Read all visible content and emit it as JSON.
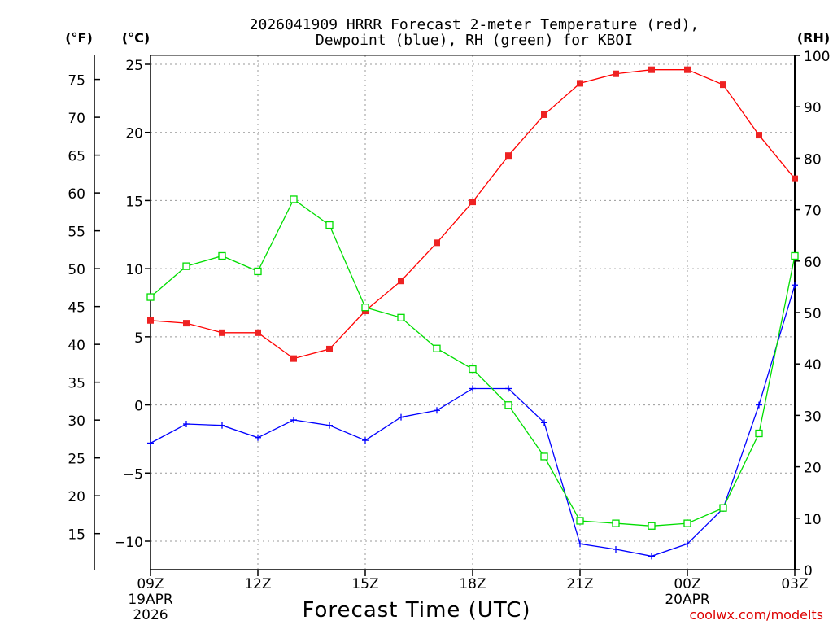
{
  "chart_data": {
    "type": "line",
    "title": "2026041909 HRRR Forecast 2-meter Temperature (red),",
    "subtitle": "Dewpoint (blue), RH (green) for KBOI",
    "xlabel": "Forecast Time (UTC)",
    "source_label": "coolwx.com/modelts",
    "left_outer_unit": "(°F)",
    "left_inner_unit": "(°C)",
    "right_unit": "(RH)",
    "x_ticks": [
      {
        "hour": 0,
        "label": "09Z",
        "line2": "19APR",
        "line3": "2026"
      },
      {
        "hour": 3,
        "label": "12Z",
        "line2": "",
        "line3": ""
      },
      {
        "hour": 6,
        "label": "15Z",
        "line2": "",
        "line3": ""
      },
      {
        "hour": 9,
        "label": "18Z",
        "line2": "",
        "line3": ""
      },
      {
        "hour": 12,
        "label": "21Z",
        "line2": "",
        "line3": ""
      },
      {
        "hour": 15,
        "label": "00Z",
        "line2": "20APR",
        "line3": ""
      },
      {
        "hour": 18,
        "label": "03Z",
        "line2": "",
        "line3": ""
      }
    ],
    "xlim": [
      0,
      18
    ],
    "celsius_ylim": [
      -12,
      25.5
    ],
    "celsius_ticks": [
      25,
      20,
      15,
      10,
      5,
      0,
      -5,
      -10
    ],
    "fahrenheit_ticks": [
      75,
      70,
      65,
      60,
      55,
      50,
      45,
      40,
      35,
      30,
      25,
      20,
      15
    ],
    "rh_ylim": [
      0,
      100
    ],
    "rh_ticks": [
      100,
      90,
      80,
      70,
      60,
      50,
      40,
      30,
      20,
      10,
      0
    ],
    "hours": [
      0,
      1,
      2,
      3,
      4,
      5,
      6,
      7,
      8,
      9,
      10,
      11,
      12,
      13,
      14,
      15,
      16,
      17,
      18
    ],
    "series": [
      {
        "name": "Temperature",
        "unit": "°C",
        "color": "#ff0000",
        "marker": "filled-square",
        "values": [
          6.2,
          6.0,
          5.3,
          5.3,
          3.4,
          4.1,
          6.9,
          9.1,
          11.9,
          14.9,
          18.3,
          21.3,
          23.6,
          24.3,
          24.6,
          24.6,
          23.5,
          19.8,
          16.6
        ]
      },
      {
        "name": "Dewpoint",
        "unit": "°C",
        "color": "#0000ff",
        "marker": "plus",
        "values": [
          -2.8,
          -1.4,
          -1.5,
          -2.4,
          -1.1,
          -1.5,
          -2.6,
          -0.9,
          -0.4,
          1.2,
          1.2,
          -1.3,
          -10.2,
          -10.6,
          -11.1,
          -10.2,
          -7.6,
          0.0,
          8.8
        ]
      },
      {
        "name": "RH",
        "unit": "%",
        "color": "#00dd00",
        "marker": "open-square",
        "values": [
          53,
          59,
          61,
          58,
          72,
          67,
          51,
          49,
          43,
          39,
          32,
          22,
          9.5,
          9,
          8.5,
          9,
          12,
          26.5,
          61
        ]
      }
    ]
  }
}
